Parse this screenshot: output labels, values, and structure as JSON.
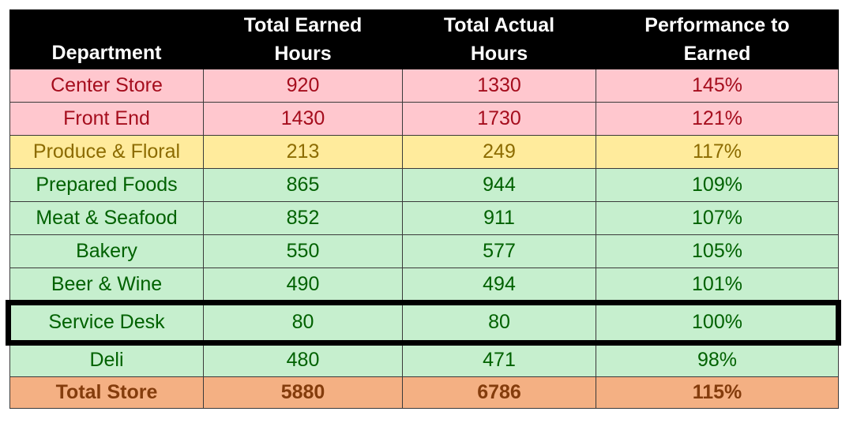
{
  "headers": [
    {
      "line1": "",
      "line2": "Department"
    },
    {
      "line1": "Total Earned",
      "line2": "Hours"
    },
    {
      "line1": "Total Actual",
      "line2": "Hours"
    },
    {
      "line1": "Performance to",
      "line2": "Earned"
    }
  ],
  "rows": [
    {
      "department": "Center Store",
      "earned": "920",
      "actual": "1330",
      "performance": "145%"
    },
    {
      "department": "Front End",
      "earned": "1430",
      "actual": "1730",
      "performance": "121%"
    },
    {
      "department": "Produce & Floral",
      "earned": "213",
      "actual": "249",
      "performance": "117%"
    },
    {
      "department": "Prepared Foods",
      "earned": "865",
      "actual": "944",
      "performance": "109%"
    },
    {
      "department": "Meat & Seafood",
      "earned": "852",
      "actual": "911",
      "performance": "107%"
    },
    {
      "department": "Bakery",
      "earned": "550",
      "actual": "577",
      "performance": "105%"
    },
    {
      "department": "Beer & Wine",
      "earned": "490",
      "actual": "494",
      "performance": "101%"
    },
    {
      "department": "Service Desk",
      "earned": "80",
      "actual": "80",
      "performance": "100%"
    },
    {
      "department": "Deli",
      "earned": "480",
      "actual": "471",
      "performance": "98%"
    }
  ],
  "total": {
    "department": "Total Store",
    "earned": "5880",
    "actual": "6786",
    "performance": "115%"
  },
  "colors": {
    "header_bg": "#000000",
    "red_fill": "#ffc7ce",
    "red_text": "#a50d1d",
    "yellow_fill": "#ffeb9c",
    "yellow_text": "#8c6b00",
    "green_fill": "#c6efce",
    "green_text": "#006100",
    "total_fill": "#f4b083",
    "total_text": "#843c0c"
  }
}
